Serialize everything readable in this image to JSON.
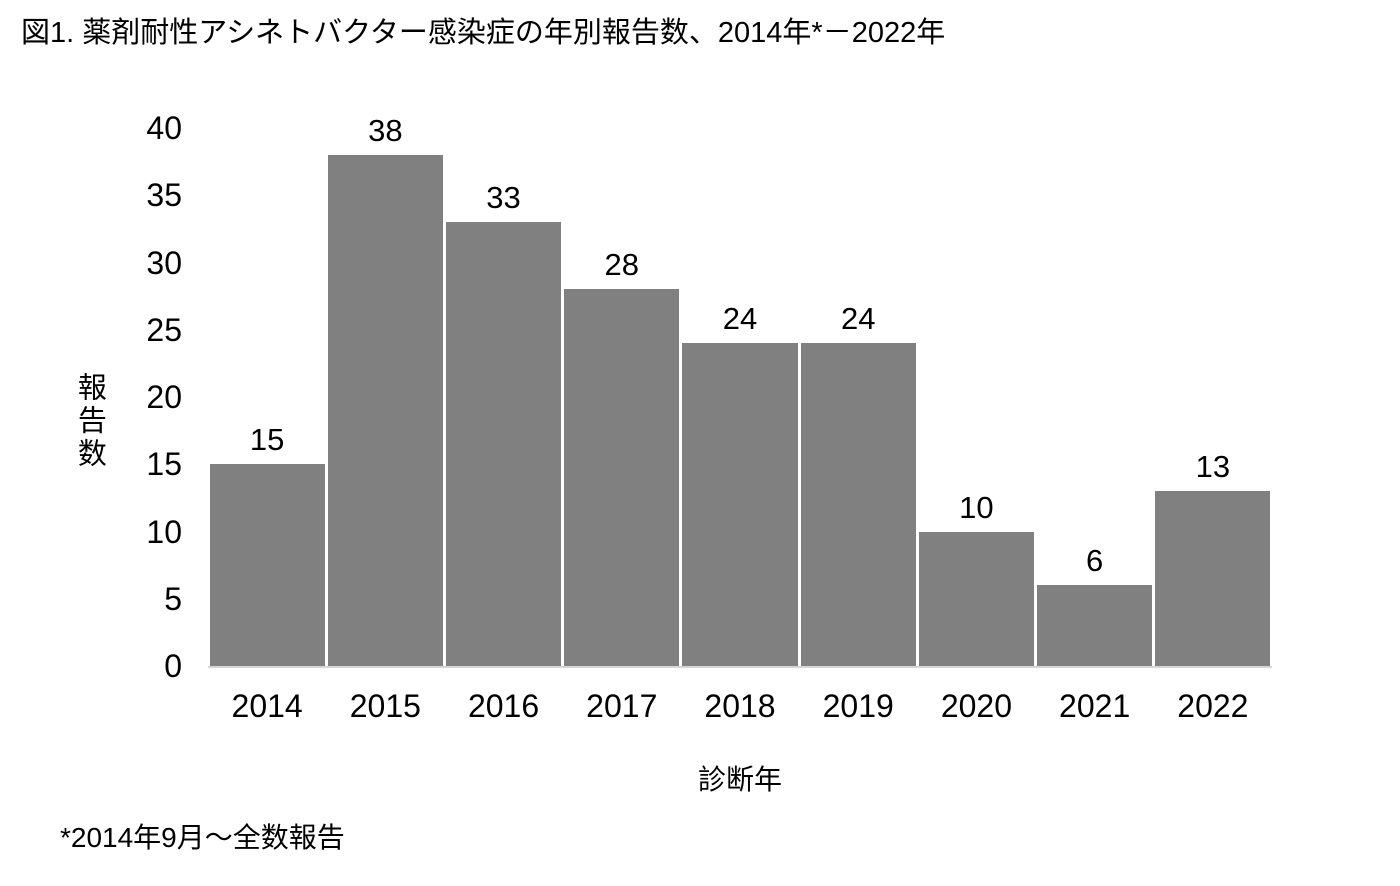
{
  "figure": {
    "title": "図1. 薬剤耐性アシネトバクター感染症の年別報告数、2014年*－2022年",
    "footnote": "*2014年9月～全数報告"
  },
  "chart_data": {
    "type": "bar",
    "title": "図1. 薬剤耐性アシネトバクター感染症の年別報告数、2014年*－2022年",
    "categories": [
      "2014",
      "2015",
      "2016",
      "2017",
      "2018",
      "2019",
      "2020",
      "2021",
      "2022"
    ],
    "values": [
      15,
      38,
      33,
      28,
      24,
      24,
      10,
      6,
      13
    ],
    "xlabel": "診断年",
    "ylabel": "報告数",
    "ylim": [
      0,
      40
    ],
    "yticks": [
      0,
      5,
      10,
      15,
      20,
      25,
      30,
      35,
      40
    ],
    "bar_color": "#808080",
    "baseline_color": "#d6d6d6",
    "grid": false,
    "legend": "none",
    "data_labels": true,
    "footnote": "*2014年9月～全数報告"
  }
}
